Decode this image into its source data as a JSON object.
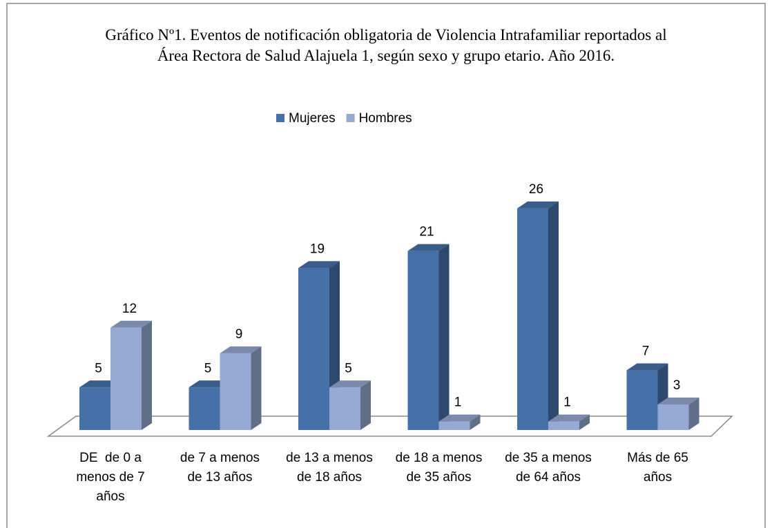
{
  "chart_data": {
    "type": "bar3d",
    "title": "Gráfico Nº1. Eventos de notificación obligatoria de Violencia Intrafamiliar reportados al Área Rectora de Salud Alajuela 1, según sexo y grupo etario. Año 2016.",
    "categories": [
      "DE  de 0 a menos de 7 años",
      "de 7 a menos de 13 años",
      "de 13 a menos de 18 años",
      "de 18 a menos de 35 años",
      "de 35 a menos de 64 años",
      "Más de 65 años"
    ],
    "series": [
      {
        "name": "Mujeres",
        "color": "#4671a8",
        "values": [
          5,
          5,
          19,
          21,
          26,
          7
        ]
      },
      {
        "name": "Hombres",
        "color": "#96a9d2",
        "values": [
          12,
          9,
          5,
          1,
          1,
          3
        ]
      }
    ],
    "legend": "top"
  }
}
